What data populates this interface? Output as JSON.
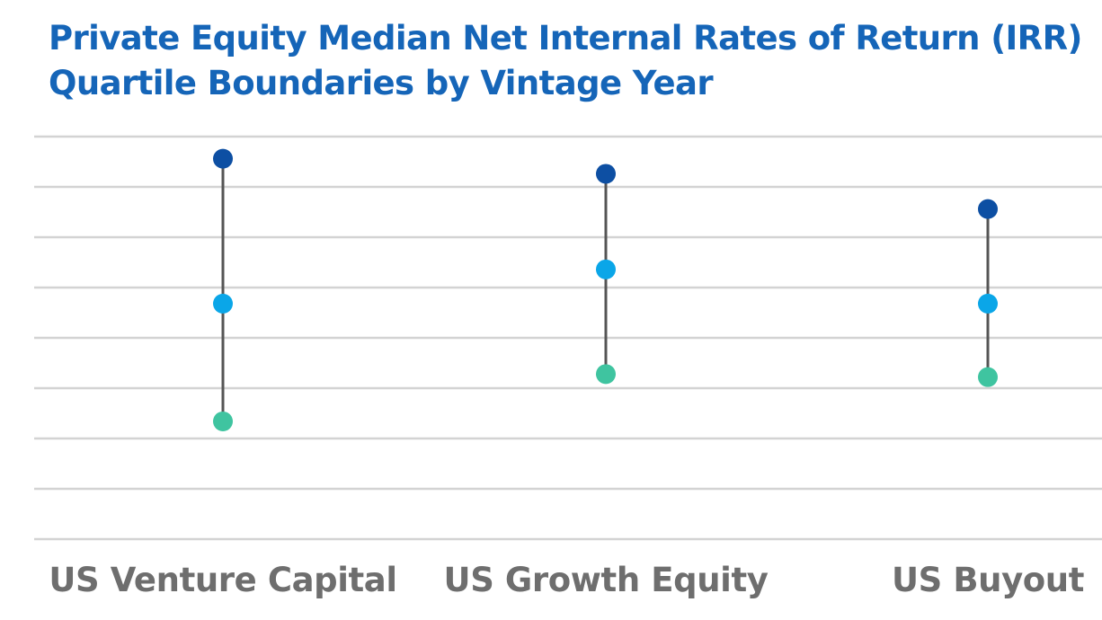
{
  "chart_data": {
    "type": "dot-range",
    "title": "Private Equity Median Net Internal Rates of Return (IRR)",
    "subtitle": "Quartile Boundaries by Vintage Year",
    "categories": [
      "US Venture Capital",
      "US Growth Equity",
      "US Buyout"
    ],
    "series": [
      {
        "values": [
          27.8,
          26.3,
          22.8
        ]
      },
      {
        "values": [
          13.4,
          16.8,
          13.4
        ]
      },
      {
        "values": [
          1.7,
          6.4,
          6.1
        ]
      }
    ],
    "ylim": [
      -10,
      30
    ],
    "grid": true,
    "colors": [
      "#0d4fa3",
      "#0aa6e8",
      "#3fc4a0"
    ],
    "connector_color": "#555555"
  }
}
